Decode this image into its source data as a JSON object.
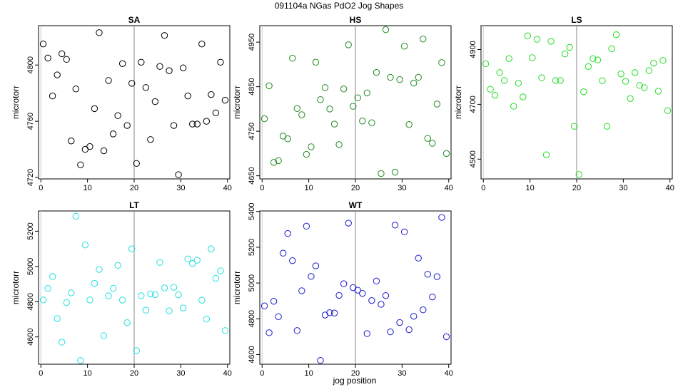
{
  "title": "091104a   NGas PdO2 Jog Shapes",
  "xlabel": "jog position",
  "colors": {
    "SA": "#000000",
    "HS": "#228b22",
    "LS": "#22dd22",
    "LT": "#22e0e0",
    "WT": "#1a1acc"
  },
  "chart_data": [
    {
      "type": "scatter",
      "title": "SA",
      "xlabel": "",
      "ylabel": "microtorr",
      "xticks": [
        0,
        10,
        20,
        30,
        40
      ],
      "yticks": [
        4720,
        4760,
        4800
      ],
      "xlim": [
        -0.5,
        40.5
      ],
      "ylim": [
        4719,
        4828
      ],
      "vline": 20,
      "x": [
        0.5,
        1.5,
        2.5,
        3.5,
        4.5,
        5.5,
        6.5,
        7.5,
        8.5,
        9.5,
        10.5,
        11.5,
        12.5,
        13.5,
        14.5,
        15.5,
        16.5,
        17.5,
        18.5,
        19.5,
        20.5,
        21.5,
        22.5,
        23.5,
        24.5,
        25.5,
        26.5,
        27.5,
        28.5,
        29.5,
        30.5,
        31.5,
        32.5,
        33.5,
        34.5,
        35.5,
        36.5,
        37.5,
        38.5,
        39.5
      ],
      "y": [
        4815,
        4805,
        4778,
        4793,
        4808,
        4804,
        4746,
        4783,
        4729,
        4740,
        4742,
        4769,
        4823,
        4739,
        4789,
        4751,
        4764,
        4801,
        4757,
        4787,
        4730,
        4802,
        4784,
        4747,
        4774,
        4799,
        4821,
        4796,
        4757,
        4722,
        4798,
        4778,
        4758,
        4758,
        4815,
        4760,
        4779,
        4766,
        4802,
        4775
      ]
    },
    {
      "type": "scatter",
      "title": "HS",
      "xlabel": "",
      "ylabel": "microtorr",
      "xticks": [
        0,
        10,
        20,
        30,
        40
      ],
      "yticks": [
        4650,
        4750,
        4850,
        4950
      ],
      "xlim": [
        -0.5,
        40.5
      ],
      "ylim": [
        4643,
        4987
      ],
      "vline": 20,
      "x": [
        0.5,
        1.5,
        2.5,
        3.5,
        4.5,
        5.5,
        6.5,
        7.5,
        8.5,
        9.5,
        10.5,
        11.5,
        12.5,
        13.5,
        14.5,
        15.5,
        16.5,
        17.5,
        18.5,
        19.5,
        20.5,
        21.5,
        22.5,
        23.5,
        24.5,
        25.5,
        26.5,
        27.5,
        28.5,
        29.5,
        30.5,
        31.5,
        32.5,
        33.5,
        34.5,
        35.5,
        36.5,
        37.5,
        38.5,
        39.5
      ],
      "y": [
        4778,
        4852,
        4680,
        4684,
        4739,
        4733,
        4914,
        4801,
        4787,
        4698,
        4715,
        4905,
        4821,
        4848,
        4800,
        4766,
        4720,
        4845,
        4944,
        4806,
        4825,
        4773,
        4836,
        4769,
        4882,
        4655,
        4978,
        4871,
        4658,
        4866,
        4941,
        4765,
        4858,
        4871,
        4957,
        4734,
        4723,
        4811,
        4904,
        4700
      ]
    },
    {
      "type": "scatter",
      "title": "LS",
      "xlabel": "",
      "ylabel": "microtorr",
      "xticks": [
        0,
        10,
        20,
        30,
        40
      ],
      "yticks": [
        4500,
        4700,
        4900
      ],
      "xlim": [
        -0.5,
        40.5
      ],
      "ylim": [
        4428,
        4987
      ],
      "vline": 20,
      "x": [
        0.5,
        1.5,
        2.5,
        3.5,
        4.5,
        5.5,
        6.5,
        7.5,
        8.5,
        9.5,
        10.5,
        11.5,
        12.5,
        13.5,
        14.5,
        15.5,
        16.5,
        17.5,
        18.5,
        19.5,
        20.5,
        21.5,
        22.5,
        23.5,
        24.5,
        25.5,
        26.5,
        27.5,
        28.5,
        29.5,
        30.5,
        31.5,
        32.5,
        33.5,
        34.5,
        35.5,
        36.5,
        37.5,
        38.5,
        39.5
      ],
      "y": [
        4848,
        4755,
        4733,
        4816,
        4787,
        4867,
        4693,
        4777,
        4727,
        4950,
        4870,
        4937,
        4797,
        4516,
        4930,
        4787,
        4787,
        4884,
        4908,
        4620,
        4444,
        4746,
        4838,
        4867,
        4862,
        4786,
        4620,
        4903,
        4954,
        4811,
        4784,
        4721,
        4816,
        4769,
        4761,
        4823,
        4850,
        4748,
        4860,
        4677
      ]
    },
    {
      "type": "scatter",
      "title": "LT",
      "xlabel": "",
      "ylabel": "microtorr",
      "xticks": [
        0,
        10,
        20,
        30,
        40
      ],
      "yticks": [
        4600,
        4800,
        5000,
        5200
      ],
      "xlim": [
        -0.5,
        40.5
      ],
      "ylim": [
        4445,
        5315
      ],
      "vline": 20,
      "x": [
        0.5,
        1.5,
        2.5,
        3.5,
        4.5,
        5.5,
        6.5,
        7.5,
        8.5,
        9.5,
        10.5,
        11.5,
        12.5,
        13.5,
        14.5,
        15.5,
        16.5,
        17.5,
        18.5,
        19.5,
        20.5,
        21.5,
        22.5,
        23.5,
        24.5,
        25.5,
        26.5,
        27.5,
        28.5,
        29.5,
        30.5,
        31.5,
        32.5,
        33.5,
        34.5,
        35.5,
        36.5,
        37.5,
        38.5,
        39.5
      ],
      "y": [
        4810,
        4875,
        4943,
        4704,
        4570,
        4795,
        4850,
        5285,
        4466,
        5122,
        4810,
        4904,
        4983,
        4607,
        4833,
        4876,
        5006,
        4809,
        4681,
        5100,
        4522,
        4834,
        4752,
        4844,
        4840,
        5023,
        4878,
        4748,
        4882,
        4839,
        4764,
        5043,
        5017,
        5035,
        4808,
        4701,
        5100,
        4933,
        4975,
        4636
      ]
    },
    {
      "type": "scatter",
      "title": "WT",
      "xlabel": "jog position",
      "ylabel": "microtorr",
      "xticks": [
        0,
        10,
        20,
        30,
        40
      ],
      "yticks": [
        4600,
        4800,
        5000,
        5200,
        5400
      ],
      "xlim": [
        -0.5,
        40.5
      ],
      "ylim": [
        4546,
        5403
      ],
      "vline": 20,
      "x": [
        0.5,
        1.5,
        2.5,
        3.5,
        4.5,
        5.5,
        6.5,
        7.5,
        8.5,
        9.5,
        10.5,
        11.5,
        12.5,
        13.5,
        14.5,
        15.5,
        16.5,
        17.5,
        18.5,
        19.5,
        20.5,
        21.5,
        22.5,
        23.5,
        24.5,
        25.5,
        26.5,
        27.5,
        28.5,
        29.5,
        30.5,
        31.5,
        32.5,
        33.5,
        34.5,
        35.5,
        36.5,
        37.5,
        38.5,
        39.5
      ],
      "y": [
        4872,
        4722,
        4898,
        4812,
        5167,
        5277,
        5125,
        4734,
        4957,
        5318,
        5037,
        5096,
        4567,
        4821,
        4834,
        4832,
        4931,
        4996,
        5335,
        4974,
        4960,
        4942,
        4717,
        4902,
        5011,
        4881,
        4930,
        4727,
        5324,
        4779,
        5286,
        4739,
        4814,
        5139,
        4850,
        5049,
        4922,
        5036,
        5367,
        4700
      ]
    }
  ]
}
